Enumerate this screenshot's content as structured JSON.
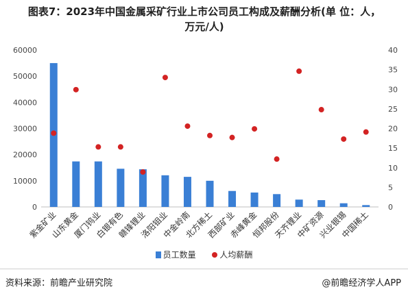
{
  "title": {
    "line1": "图表7：2023年中国金属采矿行业上市公司员工构成及薪酬分析(单 位：人，",
    "line2": "万元/人)"
  },
  "chart_data": {
    "type": "bar",
    "categories": [
      "紫金矿业",
      "山东黄金",
      "厦门钨业",
      "白银有色",
      "赣锋锂业",
      "洛阳钼业",
      "中金岭南",
      "北方稀土",
      "西部矿业",
      "赤峰黄金",
      "恒邦股份",
      "天齐锂业",
      "中矿资源",
      "兴业银锡",
      "中国稀土"
    ],
    "series": [
      {
        "name": "员工数量",
        "type": "bar",
        "axis": "left",
        "color": "#3a7fd5",
        "values": [
          55000,
          17400,
          17400,
          14600,
          14400,
          12100,
          11500,
          10000,
          6100,
          5500,
          4900,
          2800,
          2600,
          1400,
          700
        ]
      },
      {
        "name": "人均薪酬",
        "type": "scatter",
        "axis": "right",
        "color": "#d32323",
        "values": [
          18.8,
          29.9,
          15.3,
          15.3,
          8.9,
          33.0,
          20.6,
          18.2,
          17.7,
          19.9,
          12.2,
          34.6,
          24.8,
          17.3,
          19.1
        ]
      }
    ],
    "ylim_left": [
      0,
      60000
    ],
    "yticks_left": [
      "0",
      "10000",
      "20000",
      "30000",
      "40000",
      "50000",
      "60000"
    ],
    "ylim_right": [
      0,
      40
    ],
    "yticks_right": [
      "0",
      "5",
      "10",
      "15",
      "20",
      "25",
      "30",
      "35",
      "40"
    ],
    "grid": false,
    "legend_position": "bottom"
  },
  "legend": {
    "bar_label": "员工数量",
    "dot_label": "人均薪酬"
  },
  "footer": {
    "source": "资料来源：前瞻产业研究院",
    "brand": "@前瞻经济学人APP"
  }
}
